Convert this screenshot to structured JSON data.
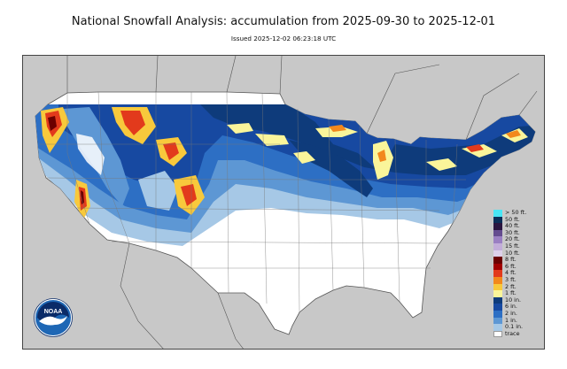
{
  "header": {
    "title": "National Snowfall Analysis: accumulation from 2025-09-30 to 2025-12-01",
    "subtitle": "Issued 2025-12-02 06:23:18 UTC"
  },
  "logo": {
    "text": "NOAA",
    "colors": {
      "outer": "#1E67B5",
      "sky": "#0A2B68",
      "bird": "#ffffff"
    }
  },
  "map": {
    "background_color": "#c8c8c8",
    "land_color": "#ffffff",
    "border_color": "#555555"
  },
  "legend": {
    "items": [
      {
        "label": "> 50 ft.",
        "color": "#49E6F5"
      },
      {
        "label": "50 ft.",
        "color": "#0B2E57"
      },
      {
        "label": "40 ft.",
        "color": "#2A1540"
      },
      {
        "label": "30 ft.",
        "color": "#644C8F"
      },
      {
        "label": "20 ft.",
        "color": "#9A7FC2"
      },
      {
        "label": "15 ft.",
        "color": "#C2ADD9"
      },
      {
        "label": "10 ft.",
        "color": "#DDD0EA"
      },
      {
        "label": "8 ft.",
        "color": "#6B0000"
      },
      {
        "label": "6 ft.",
        "color": "#A10000"
      },
      {
        "label": "4 ft.",
        "color": "#E23A1C"
      },
      {
        "label": "3 ft.",
        "color": "#F2881C"
      },
      {
        "label": "2 ft.",
        "color": "#F8C93C"
      },
      {
        "label": "1 ft.",
        "color": "#FAF59A"
      },
      {
        "label": "10 in.",
        "color": "#0E3B7B"
      },
      {
        "label": "6 in.",
        "color": "#1749A1"
      },
      {
        "label": "2 in.",
        "color": "#2D6FC4"
      },
      {
        "label": "1 in.",
        "color": "#5D97D4"
      },
      {
        "label": "0.1 in.",
        "color": "#A6C8E6"
      },
      {
        "label": "trace",
        "color": "#ffffff"
      }
    ]
  }
}
